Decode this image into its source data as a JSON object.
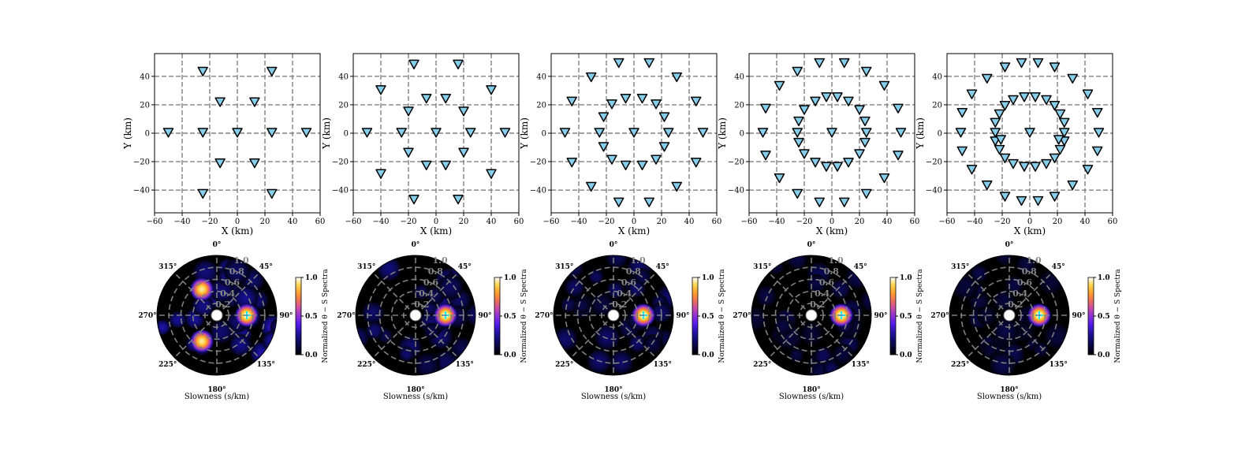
{
  "figure": {
    "xlabel": "X (km)",
    "ylabel": "Y (km)",
    "polar_xlabel": "Slowness (s/km)",
    "colorbar_label": "Normalized θ − S Spectra",
    "colorbar_ticks": [
      "0.0",
      "0.5",
      "1.0"
    ],
    "x_ticks": [
      "−60",
      "−40",
      "−20",
      "0",
      "20",
      "40",
      "60"
    ],
    "y_ticks": [
      "−40",
      "−20",
      "0",
      "20",
      "40"
    ],
    "azimuth_labels": [
      "0°",
      "45°",
      "90°",
      "135°",
      "180°",
      "225°",
      "270°",
      "315°"
    ],
    "radial_labels": [
      "0.2",
      "0.4",
      "0.6",
      "0.8",
      "1.0"
    ],
    "colors": {
      "station_fill": "#87ceeb",
      "station_edge": "#000000",
      "grid": "#808080",
      "polar_background": "#000000",
      "colormap": "gnuplot2"
    }
  },
  "chart_data": [
    {
      "type": "scatter",
      "title": "",
      "xlabel": "X (km)",
      "ylabel": "Y (km)",
      "xlim": [
        -60,
        60
      ],
      "ylim": [
        -56,
        56
      ],
      "grid": true,
      "marker": "inverted-triangle",
      "points": [
        [
          -50,
          0
        ],
        [
          -25,
          0
        ],
        [
          0,
          0
        ],
        [
          25,
          0
        ],
        [
          50,
          0
        ],
        [
          -25,
          43
        ],
        [
          25,
          43
        ],
        [
          -25,
          -43
        ],
        [
          25,
          -43
        ],
        [
          -12.5,
          21.5
        ],
        [
          12.5,
          21.5
        ],
        [
          -12.5,
          -21.5
        ],
        [
          12.5,
          -21.5
        ]
      ]
    },
    {
      "type": "heatmap",
      "projection": "polar",
      "title": "",
      "xlabel": "Slowness (s/km)",
      "colorbar": {
        "label": "Normalized θ − S Spectra",
        "range": [
          0,
          1
        ]
      },
      "radial_range": [
        0,
        1.0
      ],
      "peaks": [
        {
          "azimuth_deg": 90,
          "slowness": 0.5,
          "value": 1.0
        },
        {
          "azimuth_deg": 330,
          "slowness": 0.5,
          "value": 0.95
        },
        {
          "azimuth_deg": 210,
          "slowness": 0.5,
          "value": 0.95
        }
      ],
      "sidelobe_level": 0.3
    },
    {
      "type": "scatter",
      "title": "",
      "xlabel": "X (km)",
      "ylabel": "Y (km)",
      "xlim": [
        -60,
        60
      ],
      "ylim": [
        -56,
        56
      ],
      "grid": true,
      "marker": "inverted-triangle",
      "points": [
        [
          -50,
          0
        ],
        [
          -25,
          0
        ],
        [
          0,
          0
        ],
        [
          25,
          0
        ],
        [
          50,
          0
        ],
        [
          -40,
          30
        ],
        [
          40,
          30
        ],
        [
          -40,
          -29
        ],
        [
          40,
          -29
        ],
        [
          -16,
          48
        ],
        [
          16,
          48
        ],
        [
          -16,
          -47
        ],
        [
          16,
          -47
        ],
        [
          -20,
          15
        ],
        [
          20,
          15
        ],
        [
          -20,
          -14
        ],
        [
          20,
          -14
        ],
        [
          -7,
          24
        ],
        [
          7,
          24
        ],
        [
          -7,
          -23
        ],
        [
          7,
          -23
        ]
      ]
    },
    {
      "type": "heatmap",
      "projection": "polar",
      "title": "",
      "xlabel": "Slowness (s/km)",
      "colorbar": {
        "label": "Normalized θ − S Spectra",
        "range": [
          0,
          1
        ]
      },
      "radial_range": [
        0,
        1.0
      ],
      "peaks": [
        {
          "azimuth_deg": 90,
          "slowness": 0.5,
          "value": 1.0
        }
      ],
      "sidelobe_level": 0.22
    },
    {
      "type": "scatter",
      "title": "",
      "xlabel": "X (km)",
      "ylabel": "Y (km)",
      "xlim": [
        -60,
        60
      ],
      "ylim": [
        -56,
        56
      ],
      "grid": true,
      "marker": "inverted-triangle",
      "points": [
        [
          -50,
          0
        ],
        [
          -25,
          0
        ],
        [
          0,
          0
        ],
        [
          25,
          0
        ],
        [
          50,
          0
        ],
        [
          -45,
          22
        ],
        [
          45,
          22
        ],
        [
          -45,
          -21
        ],
        [
          45,
          -21
        ],
        [
          -31,
          39
        ],
        [
          31,
          39
        ],
        [
          -31,
          -38
        ],
        [
          31,
          -38
        ],
        [
          -11,
          49
        ],
        [
          11,
          49
        ],
        [
          -11,
          -49
        ],
        [
          11,
          -49
        ],
        [
          -22,
          11
        ],
        [
          22,
          11
        ],
        [
          -22,
          -10
        ],
        [
          22,
          -10
        ],
        [
          -16,
          20
        ],
        [
          16,
          20
        ],
        [
          -16,
          -19
        ],
        [
          16,
          -19
        ],
        [
          -6,
          24
        ],
        [
          6,
          24
        ],
        [
          -6,
          -23
        ],
        [
          6,
          -23
        ]
      ]
    },
    {
      "type": "heatmap",
      "projection": "polar",
      "title": "",
      "xlabel": "Slowness (s/km)",
      "colorbar": {
        "label": "Normalized θ − S Spectra",
        "range": [
          0,
          1
        ]
      },
      "radial_range": [
        0,
        1.0
      ],
      "peaks": [
        {
          "azimuth_deg": 90,
          "slowness": 0.5,
          "value": 1.0
        }
      ],
      "sidelobe_level": 0.18
    },
    {
      "type": "scatter",
      "title": "",
      "xlabel": "X (km)",
      "ylabel": "Y (km)",
      "xlim": [
        -60,
        60
      ],
      "ylim": [
        -56,
        56
      ],
      "grid": true,
      "marker": "inverted-triangle",
      "points": [
        [
          -50,
          0
        ],
        [
          -25,
          0
        ],
        [
          0,
          0
        ],
        [
          25,
          0
        ],
        [
          50,
          0
        ],
        [
          -48,
          17
        ],
        [
          48,
          17
        ],
        [
          -48,
          -16
        ],
        [
          48,
          -16
        ],
        [
          -38,
          33
        ],
        [
          38,
          33
        ],
        [
          -38,
          -32
        ],
        [
          38,
          -32
        ],
        [
          -25,
          43
        ],
        [
          25,
          43
        ],
        [
          -25,
          -43
        ],
        [
          25,
          -43
        ],
        [
          -9,
          49
        ],
        [
          9,
          49
        ],
        [
          -9,
          -49
        ],
        [
          9,
          -49
        ],
        [
          -24,
          8
        ],
        [
          24,
          8
        ],
        [
          -24,
          -7
        ],
        [
          24,
          -7
        ],
        [
          -20,
          16
        ],
        [
          20,
          16
        ],
        [
          -20,
          -15
        ],
        [
          20,
          -15
        ],
        [
          -12,
          22
        ],
        [
          12,
          22
        ],
        [
          -12,
          -21
        ],
        [
          12,
          -21
        ],
        [
          -4,
          25
        ],
        [
          4,
          25
        ],
        [
          -4,
          -24
        ],
        [
          4,
          -24
        ]
      ]
    },
    {
      "type": "heatmap",
      "projection": "polar",
      "title": "",
      "xlabel": "Slowness (s/km)",
      "colorbar": {
        "label": "Normalized θ − S Spectra",
        "range": [
          0,
          1
        ]
      },
      "radial_range": [
        0,
        1.0
      ],
      "peaks": [
        {
          "azimuth_deg": 90,
          "slowness": 0.5,
          "value": 1.0
        }
      ],
      "sidelobe_level": 0.15
    },
    {
      "type": "scatter",
      "title": "",
      "xlabel": "X (km)",
      "ylabel": "Y (km)",
      "xlim": [
        -60,
        60
      ],
      "ylim": [
        -56,
        56
      ],
      "grid": true,
      "marker": "inverted-triangle",
      "points": [
        [
          -50,
          0
        ],
        [
          -25,
          0
        ],
        [
          0,
          0
        ],
        [
          25,
          0
        ],
        [
          50,
          0
        ],
        [
          -49,
          14
        ],
        [
          49,
          14
        ],
        [
          -49,
          -13
        ],
        [
          49,
          -13
        ],
        [
          -42,
          27
        ],
        [
          42,
          27
        ],
        [
          -42,
          -26
        ],
        [
          42,
          -26
        ],
        [
          -31,
          38
        ],
        [
          31,
          38
        ],
        [
          -31,
          -37
        ],
        [
          31,
          -37
        ],
        [
          -18,
          46
        ],
        [
          18,
          46
        ],
        [
          -18,
          -45
        ],
        [
          18,
          -45
        ],
        [
          -6,
          49
        ],
        [
          6,
          49
        ],
        [
          -6,
          -48
        ],
        [
          6,
          -48
        ],
        [
          -25,
          7
        ],
        [
          25,
          7
        ],
        [
          -25,
          -6
        ],
        [
          25,
          -6
        ],
        [
          -22,
          13
        ],
        [
          22,
          13
        ],
        [
          -22,
          -12
        ],
        [
          22,
          -12
        ],
        [
          -18,
          19
        ],
        [
          18,
          19
        ],
        [
          -18,
          -18
        ],
        [
          18,
          -18
        ],
        [
          -12,
          23
        ],
        [
          12,
          23
        ],
        [
          -12,
          -22
        ],
        [
          12,
          -22
        ],
        [
          -4,
          25
        ],
        [
          4,
          25
        ],
        [
          -4,
          -24
        ],
        [
          4,
          -24
        ],
        [
          -21,
          -5
        ],
        [
          21,
          -5
        ]
      ]
    },
    {
      "type": "heatmap",
      "projection": "polar",
      "title": "",
      "xlabel": "Slowness (s/km)",
      "colorbar": {
        "label": "Normalized θ − S Spectra",
        "range": [
          0,
          1
        ]
      },
      "radial_range": [
        0,
        1.0
      ],
      "peaks": [
        {
          "azimuth_deg": 90,
          "slowness": 0.5,
          "value": 1.0
        }
      ],
      "sidelobe_level": 0.13
    }
  ]
}
